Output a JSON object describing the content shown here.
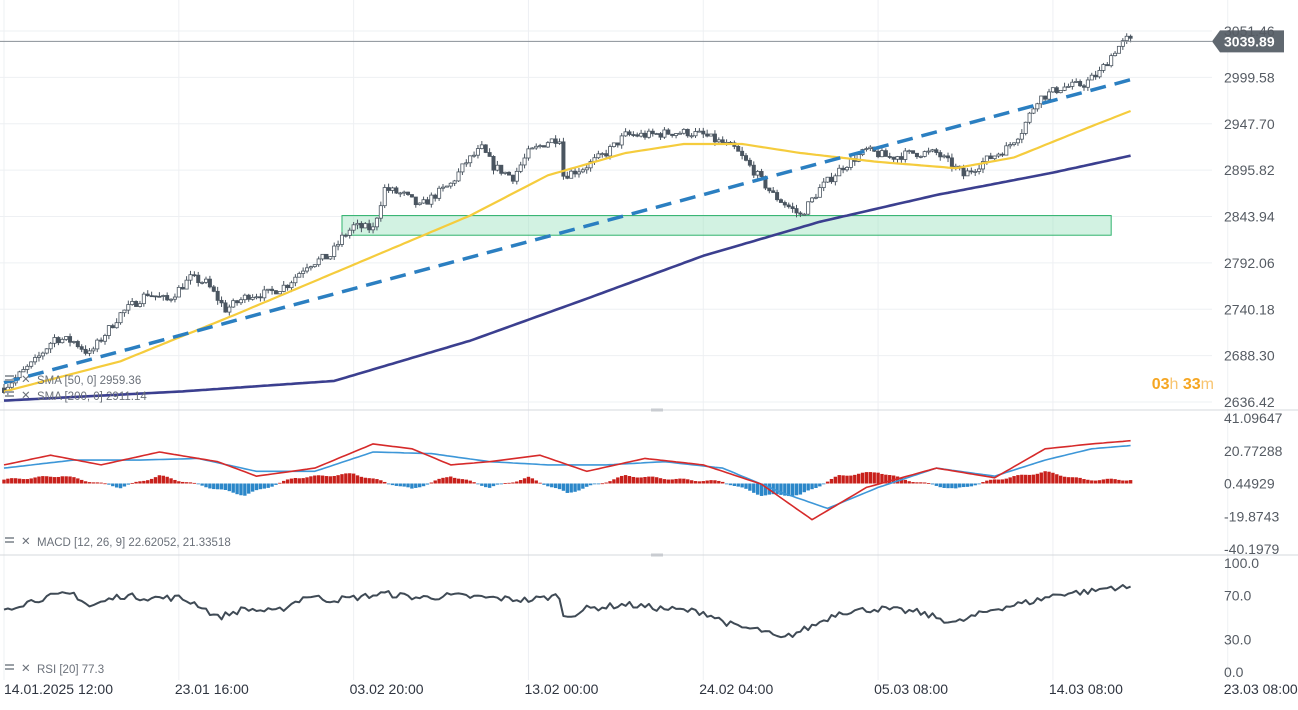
{
  "chart_data": [
    {
      "type": "candlestick",
      "pane": "price",
      "y_ticks": [
        "3051.46",
        "2999.58",
        "2947.70",
        "2895.82",
        "2843.94",
        "2792.06",
        "2740.18",
        "2688.30",
        "2636.42"
      ],
      "ylim": [
        2636.42,
        3051.46
      ],
      "last_price": "3039.89",
      "x_ticks": [
        "14.01.2025  12:00",
        "23.01  16:00",
        "03.02  20:00",
        "13.02  00:00",
        "24.02  04:00",
        "05.03  08:00",
        "14.03  08:00",
        "23.03  08:00"
      ],
      "x_index": [
        0,
        45,
        90,
        135,
        180,
        225,
        270,
        315
      ],
      "close_series": [
        [
          0,
          2652
        ],
        [
          8,
          2682
        ],
        [
          13,
          2708
        ],
        [
          18,
          2704
        ],
        [
          22,
          2690
        ],
        [
          30,
          2735
        ],
        [
          37,
          2758
        ],
        [
          42,
          2750
        ],
        [
          48,
          2775
        ],
        [
          52,
          2770
        ],
        [
          57,
          2740
        ],
        [
          63,
          2756
        ],
        [
          68,
          2758
        ],
        [
          73,
          2768
        ],
        [
          78,
          2790
        ],
        [
          84,
          2800
        ],
        [
          87,
          2820
        ],
        [
          90,
          2833
        ],
        [
          95,
          2830
        ],
        [
          98,
          2875
        ],
        [
          103,
          2868
        ],
        [
          107,
          2855
        ],
        [
          111,
          2868
        ],
        [
          115,
          2880
        ],
        [
          119,
          2905
        ],
        [
          123,
          2920
        ],
        [
          126,
          2900
        ],
        [
          131,
          2888
        ],
        [
          135,
          2915
        ],
        [
          140,
          2928
        ],
        [
          143,
          2932
        ],
        [
          144,
          2890
        ],
        [
          149,
          2898
        ],
        [
          155,
          2915
        ],
        [
          160,
          2935
        ],
        [
          166,
          2935
        ],
        [
          172,
          2938
        ],
        [
          176,
          2938
        ],
        [
          180,
          2935
        ],
        [
          188,
          2920
        ],
        [
          193,
          2895
        ],
        [
          198,
          2868
        ],
        [
          205,
          2845
        ],
        [
          210,
          2875
        ],
        [
          216,
          2900
        ],
        [
          222,
          2918
        ],
        [
          228,
          2910
        ],
        [
          234,
          2915
        ],
        [
          240,
          2915
        ],
        [
          245,
          2898
        ],
        [
          247,
          2890
        ],
        [
          252,
          2905
        ],
        [
          258,
          2920
        ],
        [
          262,
          2940
        ],
        [
          266,
          2975
        ],
        [
          272,
          2988
        ],
        [
          278,
          2992
        ],
        [
          282,
          3005
        ],
        [
          286,
          3030
        ],
        [
          289,
          3042
        ],
        [
          290,
          3040
        ]
      ],
      "indicators": [
        {
          "name": "SMA",
          "params": "[50, 0]",
          "value": "2959.36",
          "color": "#f5cc3d",
          "points": [
            [
              0,
              2648
            ],
            [
              30,
              2682
            ],
            [
              60,
              2735
            ],
            [
              90,
              2790
            ],
            [
              120,
              2845
            ],
            [
              140,
              2890
            ],
            [
              160,
              2915
            ],
            [
              175,
              2925
            ],
            [
              190,
              2925
            ],
            [
              205,
              2915
            ],
            [
              225,
              2905
            ],
            [
              245,
              2898
            ],
            [
              260,
              2910
            ],
            [
              280,
              2945
            ],
            [
              290,
              2962
            ]
          ]
        },
        {
          "name": "SMA",
          "params": "[200, 0]",
          "value": "2911.14",
          "color": "#3b3f8f",
          "points": [
            [
              0,
              2638
            ],
            [
              45,
              2648
            ],
            [
              85,
              2660
            ],
            [
              120,
              2705
            ],
            [
              150,
              2752
            ],
            [
              180,
              2800
            ],
            [
              210,
              2838
            ],
            [
              240,
              2868
            ],
            [
              270,
              2893
            ],
            [
              290,
              2912
            ]
          ]
        }
      ],
      "trendline": {
        "color": "#2b7fc1",
        "style": "dashed",
        "points": [
          [
            0,
            2658
          ],
          [
            290,
            2997
          ]
        ]
      },
      "support_zone": {
        "x_from": 87,
        "x_to": 285,
        "y_from": 2823,
        "y_to": 2845,
        "color": "#9ce3bf"
      }
    },
    {
      "type": "bar",
      "pane": "macd",
      "title": "MACD",
      "params": "[12, 26, 9]",
      "values_text": "22.62052,  21.33518",
      "y_ticks": [
        "41.09647",
        "20.77288",
        "0.44929",
        "-19.8743",
        "-40.1979"
      ],
      "ylim": [
        -40.1979,
        41.09647
      ],
      "macd_line": {
        "color": "#d62a2a",
        "points": [
          [
            0,
            12
          ],
          [
            12,
            18
          ],
          [
            25,
            12
          ],
          [
            40,
            20
          ],
          [
            55,
            14
          ],
          [
            65,
            5
          ],
          [
            80,
            10
          ],
          [
            95,
            25
          ],
          [
            105,
            22
          ],
          [
            115,
            12
          ],
          [
            125,
            14
          ],
          [
            138,
            18
          ],
          [
            150,
            8
          ],
          [
            165,
            16
          ],
          [
            180,
            12
          ],
          [
            195,
            0
          ],
          [
            208,
            -22
          ],
          [
            222,
            -2
          ],
          [
            240,
            10
          ],
          [
            255,
            4
          ],
          [
            268,
            22
          ],
          [
            280,
            25
          ],
          [
            290,
            27
          ]
        ]
      },
      "signal_line": {
        "color": "#3d97d8",
        "points": [
          [
            0,
            10
          ],
          [
            18,
            15
          ],
          [
            35,
            15
          ],
          [
            50,
            16
          ],
          [
            65,
            8
          ],
          [
            80,
            8
          ],
          [
            95,
            20
          ],
          [
            110,
            19
          ],
          [
            125,
            14
          ],
          [
            140,
            12
          ],
          [
            155,
            12
          ],
          [
            170,
            14
          ],
          [
            185,
            10
          ],
          [
            200,
            -5
          ],
          [
            212,
            -15
          ],
          [
            225,
            -2
          ],
          [
            240,
            10
          ],
          [
            255,
            5
          ],
          [
            268,
            15
          ],
          [
            280,
            22
          ],
          [
            290,
            24
          ]
        ]
      },
      "histogram": {
        "positive_color": "#c8201b",
        "negative_color": "#2b87c9",
        "points": [
          [
            0,
            2
          ],
          [
            15,
            4
          ],
          [
            30,
            -2
          ],
          [
            40,
            4
          ],
          [
            55,
            -3
          ],
          [
            62,
            -6
          ],
          [
            75,
            3
          ],
          [
            90,
            5
          ],
          [
            105,
            -3
          ],
          [
            115,
            4
          ],
          [
            125,
            -2
          ],
          [
            135,
            3
          ],
          [
            145,
            -5
          ],
          [
            160,
            4
          ],
          [
            175,
            2
          ],
          [
            185,
            1
          ],
          [
            195,
            -6
          ],
          [
            205,
            -6
          ],
          [
            215,
            4
          ],
          [
            225,
            6
          ],
          [
            232,
            2
          ],
          [
            245,
            -3
          ],
          [
            255,
            2
          ],
          [
            268,
            6
          ],
          [
            278,
            2
          ],
          [
            290,
            2
          ]
        ]
      }
    },
    {
      "type": "line",
      "pane": "rsi",
      "title": "RSI",
      "params": "[20]",
      "value": "77.3",
      "y_ticks": [
        "100.0",
        "70.0",
        "30.0",
        "0.0"
      ],
      "ylim": [
        0,
        100
      ],
      "color": "#3f4a55",
      "points": [
        [
          0,
          58
        ],
        [
          10,
          68
        ],
        [
          18,
          72
        ],
        [
          22,
          60
        ],
        [
          30,
          70
        ],
        [
          38,
          68
        ],
        [
          45,
          68
        ],
        [
          50,
          62
        ],
        [
          55,
          50
        ],
        [
          62,
          58
        ],
        [
          70,
          55
        ],
        [
          78,
          70
        ],
        [
          84,
          66
        ],
        [
          90,
          68
        ],
        [
          98,
          72
        ],
        [
          107,
          68
        ],
        [
          115,
          70
        ],
        [
          125,
          68
        ],
        [
          135,
          66
        ],
        [
          143,
          70
        ],
        [
          144,
          50
        ],
        [
          150,
          58
        ],
        [
          160,
          62
        ],
        [
          170,
          58
        ],
        [
          180,
          55
        ],
        [
          188,
          42
        ],
        [
          195,
          38
        ],
        [
          200,
          30
        ],
        [
          208,
          42
        ],
        [
          215,
          55
        ],
        [
          225,
          58
        ],
        [
          235,
          55
        ],
        [
          245,
          45
        ],
        [
          255,
          58
        ],
        [
          265,
          65
        ],
        [
          272,
          72
        ],
        [
          280,
          74
        ],
        [
          285,
          78
        ],
        [
          290,
          77
        ]
      ]
    }
  ],
  "countdown": {
    "hours": "03",
    "h_unit": "h",
    "minutes": "33",
    "m_unit": "m"
  }
}
